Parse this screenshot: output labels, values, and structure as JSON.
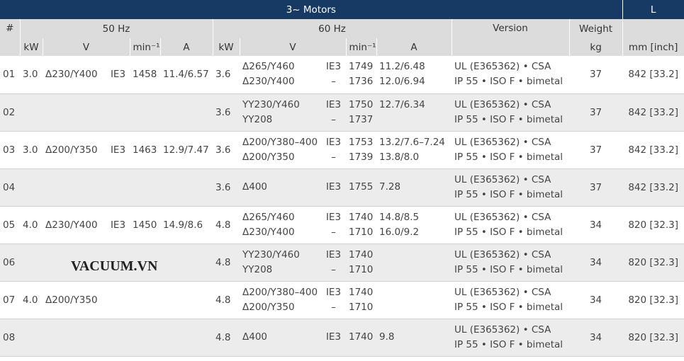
{
  "header": {
    "title": "3~ Motors",
    "length_label": "L",
    "number_label": "#",
    "group_50": "50 Hz",
    "group_60": "60 Hz",
    "version_label": "Version",
    "weight_label": "Weight",
    "weight_unit": "kg",
    "length_unit": "mm [inch]",
    "sub": {
      "kw": "kW",
      "v": "V",
      "speed": "min⁻¹",
      "current": "A"
    }
  },
  "rows": [
    {
      "no": "01",
      "hz50": {
        "kw": "3.0",
        "v": "Δ230/Y400",
        "eff": "IE3",
        "speed": "1458",
        "a": "11.4/6.57"
      },
      "hz60": {
        "kw": "3.6",
        "v": [
          "Δ265/Y460",
          "Δ230/Y400"
        ],
        "eff": [
          "IE3",
          "–"
        ],
        "speed": [
          "1749",
          "1736"
        ],
        "a": [
          "11.2/6.48",
          "12.0/6.94"
        ]
      },
      "version": [
        "UL (E365362) • CSA",
        "IP 55 • ISO F • bimetal"
      ],
      "weight": "37",
      "length": "842 [33.2]"
    },
    {
      "no": "02",
      "hz60": {
        "kw": "3.6",
        "v": [
          "YY230/Y460",
          "YY208"
        ],
        "eff": [
          "IE3",
          "–"
        ],
        "speed": [
          "1750",
          "1737"
        ],
        "a": [
          "12.7/6.34"
        ]
      },
      "version": [
        "UL (E365362) • CSA",
        "IP 55 • ISO F • bimetal"
      ],
      "weight": "37",
      "length": "842 [33.2]"
    },
    {
      "no": "03",
      "hz50": {
        "kw": "3.0",
        "v": "Δ200/Y350",
        "eff": "IE3",
        "speed": "1463",
        "a": "12.9/7.47"
      },
      "hz60": {
        "kw": "3.6",
        "v": [
          "Δ200/Y380–400",
          "Δ200/Y350"
        ],
        "eff": [
          "IE3",
          "–"
        ],
        "speed": [
          "1753",
          "1739"
        ],
        "a": [
          "13.2/7.6–7.24",
          "13.8/8.0"
        ]
      },
      "version": [
        "UL (E365362) • CSA",
        "IP 55 • ISO F • bimetal"
      ],
      "weight": "37",
      "length": "842 [33.2]"
    },
    {
      "no": "04",
      "hz60": {
        "kw": "3.6",
        "v": [
          "Δ400"
        ],
        "eff": [
          "IE3"
        ],
        "speed": [
          "1755"
        ],
        "a": [
          "7.28"
        ]
      },
      "version": [
        "UL (E365362) • CSA",
        "IP 55 • ISO F • bimetal"
      ],
      "weight": "37",
      "length": "842 [33.2]"
    },
    {
      "no": "05",
      "hz50": {
        "kw": "4.0",
        "v": "Δ230/Y400",
        "eff": "IE3",
        "speed": "1450",
        "a": "14.9/8.6"
      },
      "hz60": {
        "kw": "4.8",
        "v": [
          "Δ265/Y460",
          "Δ230/Y400"
        ],
        "eff": [
          "IE3",
          "–"
        ],
        "speed": [
          "1740",
          "1710"
        ],
        "a": [
          "14.8/8.5",
          "16.0/9.2"
        ]
      },
      "version": [
        "UL (E365362) • CSA",
        "IP 55 • ISO F • bimetal"
      ],
      "weight": "34",
      "length": "820 [32.3]"
    },
    {
      "no": "06",
      "hz60": {
        "kw": "4.8",
        "v": [
          "YY230/Y460",
          "YY208"
        ],
        "eff": [
          "IE3",
          "–"
        ],
        "speed": [
          "1740",
          "1710"
        ],
        "a": []
      },
      "version": [
        "UL (E365362) • CSA",
        "IP 55 • ISO F • bimetal"
      ],
      "weight": "34",
      "length": "820 [32.3]"
    },
    {
      "no": "07",
      "hz50": {
        "kw": "4.0",
        "v": "Δ200/Y350"
      },
      "hz60": {
        "kw": "4.8",
        "v": [
          "Δ200/Y380–400",
          "Δ200/Y350"
        ],
        "eff": [
          "IE3",
          "–"
        ],
        "speed": [
          "1740",
          "1710"
        ],
        "a": []
      },
      "version": [
        "UL (E365362) • CSA",
        "IP 55 • ISO F • bimetal"
      ],
      "weight": "34",
      "length": "820 [32.3]"
    },
    {
      "no": "08",
      "hz60": {
        "kw": "4.8",
        "v": [
          "Δ400"
        ],
        "eff": [
          "IE3"
        ],
        "speed": [
          "1740"
        ],
        "a": [
          "9.8"
        ]
      },
      "version": [
        "UL (E365362) • CSA",
        "IP 55 • ISO F • bimetal"
      ],
      "weight": "34",
      "length": "820 [32.3]"
    }
  ],
  "watermark": "VACUUM.VN"
}
